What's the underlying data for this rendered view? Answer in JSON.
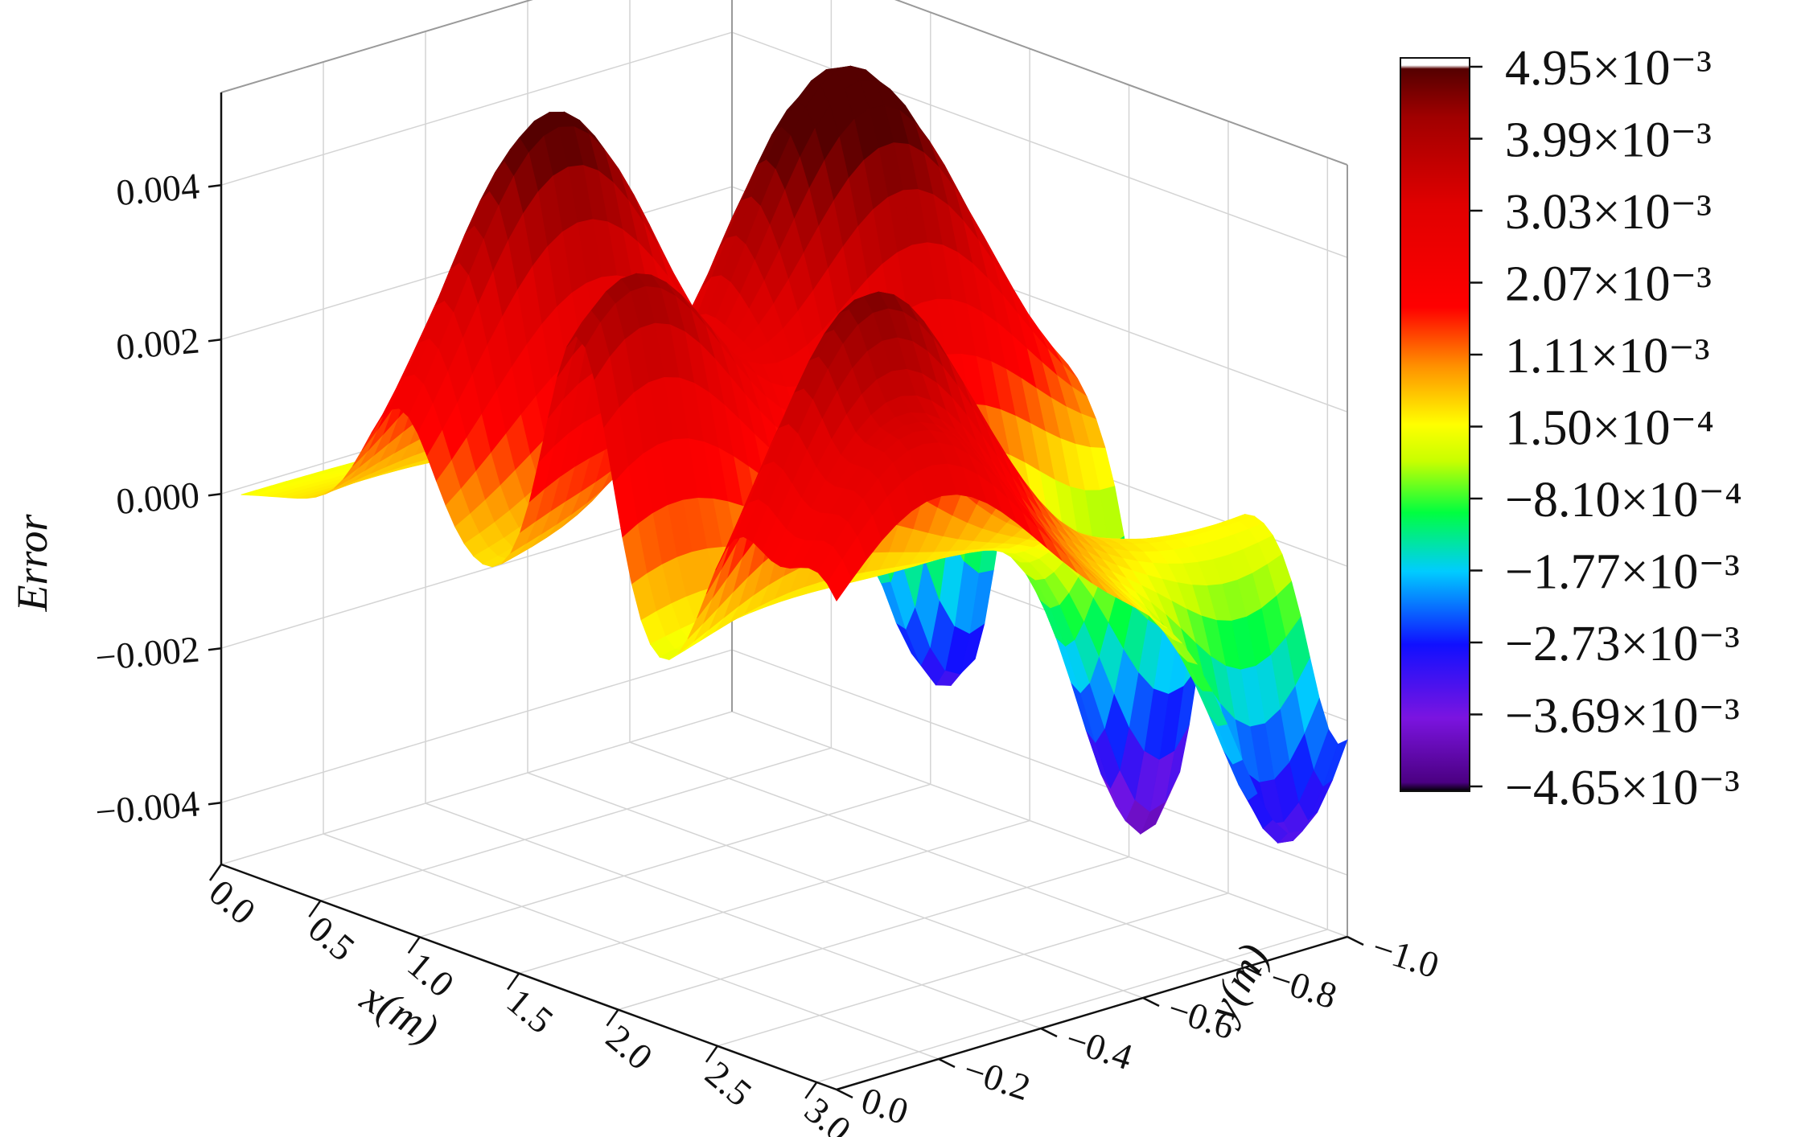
{
  "chart_data": {
    "type": "surface3d",
    "zlabel": "Error",
    "xlabel": "x(m)",
    "ylabel": "y(m)",
    "x_ticks": [
      "0.0",
      "0.5",
      "1.0",
      "1.5",
      "2.0",
      "2.5",
      "3.0"
    ],
    "y_ticks": [
      "0.0",
      "−0.2",
      "−0.4",
      "−0.6",
      "−0.8",
      "−1.0"
    ],
    "z_ticks": [
      "0.004",
      "0.002",
      "0.000",
      "−0.002",
      "−0.004"
    ],
    "xlim": [
      0,
      3.1
    ],
    "ylim": [
      -1.0,
      0
    ],
    "zlim": [
      -0.0048,
      0.0052
    ],
    "grid": true,
    "colormap": [
      "#000000",
      "#4b0082",
      "#7b14e0",
      "#1010ff",
      "#00ccff",
      "#00ff40",
      "#c8ff00",
      "#ffff00",
      "#ff9000",
      "#ff0000",
      "#e00000",
      "#a00000",
      "#550000",
      "#ffffff"
    ],
    "colorbar": {
      "min": -0.00465,
      "max": 0.00495,
      "labels": [
        "4.95×10⁻³",
        "3.99×10⁻³",
        "3.03×10⁻³",
        "2.07×10⁻³",
        "1.11×10⁻³",
        "1.50×10⁻⁴",
        "−8.10×10⁻⁴",
        "−1.77×10⁻³",
        "−2.73×10⁻³",
        "−3.69×10⁻³",
        "−4.65×10⁻³"
      ]
    },
    "surface": {
      "peaks": [
        {
          "x": 0.9,
          "y": -0.3,
          "z": 0.00495
        },
        {
          "x": 1.8,
          "y": -0.1,
          "z": 0.0045
        },
        {
          "x": 1.4,
          "y": -0.6,
          "z": 0.0043
        },
        {
          "x": 2.6,
          "y": -0.25,
          "z": 0.0046
        },
        {
          "x": 1.65,
          "y": -0.7,
          "z": 0.0033
        },
        {
          "x": 3.0,
          "y": -0.2,
          "z": 0.0028
        }
      ],
      "troughs": [
        {
          "x": 1.2,
          "y": -0.95,
          "z": -0.0035
        },
        {
          "x": 2.2,
          "y": -0.95,
          "z": -0.0046
        },
        {
          "x": 3.05,
          "y": -0.9,
          "z": -0.0034
        }
      ]
    }
  }
}
